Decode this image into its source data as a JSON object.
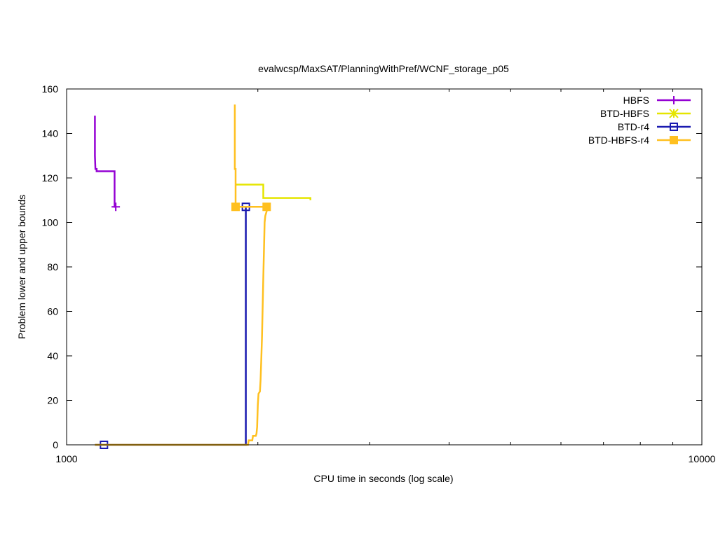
{
  "chart_data": {
    "type": "line",
    "title": "evalwcsp/MaxSAT/PlanningWithPref/WCNF_storage_p05",
    "xlabel": "CPU time in seconds (log scale)",
    "ylabel": "Problem lower and upper bounds",
    "x_scale": "log",
    "xlim": [
      1000,
      10000
    ],
    "ylim": [
      0,
      160
    ],
    "x_ticks": [
      1000,
      2000,
      3000,
      4000,
      5000,
      6000,
      7000,
      8000,
      9000,
      10000
    ],
    "x_tick_labels": [
      "1000",
      "",
      "",
      "",
      "",
      "",
      "",
      "",
      "",
      "10000"
    ],
    "y_ticks": [
      0,
      20,
      40,
      60,
      80,
      100,
      120,
      140,
      160
    ],
    "y_tick_labels": [
      "0",
      "20",
      "40",
      "60",
      "80",
      "100",
      "120",
      "140",
      "160"
    ],
    "grid": false,
    "legend_position": "top-right",
    "series": [
      {
        "name": "HBFS",
        "color": "#9400d3",
        "marker": "plus",
        "points": [
          [
            1108,
            148
          ],
          [
            1108,
            130
          ],
          [
            1110,
            124
          ],
          [
            1115,
            124
          ],
          [
            1115,
            123
          ],
          [
            1190,
            123
          ],
          [
            1190,
            107
          ],
          [
            1195,
            107
          ]
        ],
        "marker_points": [
          [
            1195,
            107
          ]
        ]
      },
      {
        "name": "BTD-HBFS",
        "color": "#e5e500",
        "marker": "star",
        "points": [
          [
            1845,
            117
          ],
          [
            2040,
            117
          ],
          [
            2040,
            111
          ],
          [
            2420,
            111
          ],
          [
            2420,
            110
          ]
        ],
        "marker_points": []
      },
      {
        "name": "BTD-r4",
        "color": "#1a1ab0",
        "marker": "open-square",
        "points": [
          [
            1108,
            0
          ],
          [
            1915,
            0
          ],
          [
            1915,
            107
          ]
        ],
        "marker_points": [
          [
            1145,
            0
          ],
          [
            1915,
            107
          ]
        ]
      },
      {
        "name": "BTD-HBFS-r4",
        "color": "#ffc020",
        "marker": "filled-square",
        "points": [
          [
            1840,
            153
          ],
          [
            1840,
            124
          ],
          [
            1845,
            124
          ],
          [
            1845,
            107
          ],
          [
            2065,
            107
          ],
          [
            2065,
            105
          ],
          [
            2055,
            103
          ],
          [
            2050,
            100
          ],
          [
            2045,
            88
          ],
          [
            2040,
            75
          ],
          [
            2035,
            62
          ],
          [
            2030,
            48
          ],
          [
            2025,
            38
          ],
          [
            2020,
            29
          ],
          [
            2015,
            24
          ],
          [
            2005,
            23
          ],
          [
            2000,
            18
          ],
          [
            1995,
            8
          ],
          [
            1990,
            5
          ],
          [
            1985,
            4
          ],
          [
            1965,
            4
          ],
          [
            1960,
            2
          ],
          [
            1935,
            2
          ],
          [
            1930,
            0
          ],
          [
            1108,
            0
          ]
        ],
        "marker_points": [
          [
            1845,
            107
          ],
          [
            2065,
            107
          ]
        ]
      }
    ]
  }
}
